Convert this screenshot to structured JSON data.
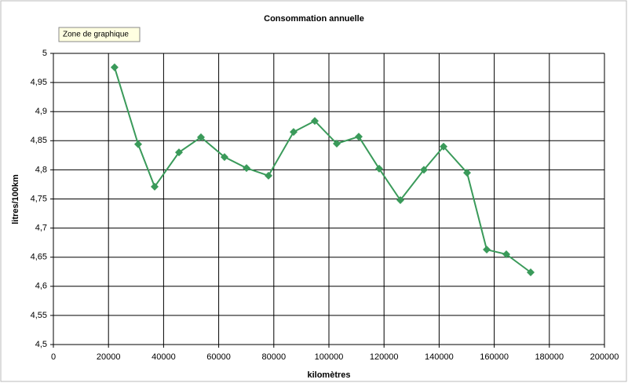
{
  "chart_data": {
    "type": "line",
    "title": "Consommation annuelle",
    "tooltip": "Zone de graphique",
    "x_label": "kilomètres",
    "y_label": "litres/100km",
    "x": [
      22200,
      30770,
      36750,
      45580,
      53560,
      62100,
      70090,
      78060,
      87180,
      94870,
      102850,
      110830,
      118230,
      125930,
      134470,
      141600,
      150140,
      157270,
      164390,
      173220
    ],
    "series": [
      {
        "name": "litres/100km",
        "color": "#3a9a5a",
        "values": [
          4.976,
          4.844,
          4.771,
          4.83,
          4.856,
          4.822,
          4.803,
          4.79,
          4.865,
          4.884,
          4.845,
          4.857,
          4.802,
          4.748,
          4.8,
          4.84,
          4.795,
          4.663,
          4.655,
          4.624
        ]
      }
    ],
    "xlim": [
      0,
      200000
    ],
    "xticks": [
      0,
      20000,
      40000,
      60000,
      80000,
      100000,
      120000,
      140000,
      160000,
      180000,
      200000
    ],
    "ylim": [
      4.5,
      5
    ],
    "yticks": [
      {
        "value": 4.5,
        "label": "4,5"
      },
      {
        "value": 4.55,
        "label": "4,55"
      },
      {
        "value": 4.6,
        "label": "4,6"
      },
      {
        "value": 4.65,
        "label": "4,65"
      },
      {
        "value": 4.7,
        "label": "4,7"
      },
      {
        "value": 4.75,
        "label": "4,75"
      },
      {
        "value": 4.8,
        "label": "4,8"
      },
      {
        "value": 4.85,
        "label": "4,85"
      },
      {
        "value": 4.9,
        "label": "4,9"
      },
      {
        "value": 4.95,
        "label": "4,95"
      },
      5
    ],
    "grid": true
  }
}
